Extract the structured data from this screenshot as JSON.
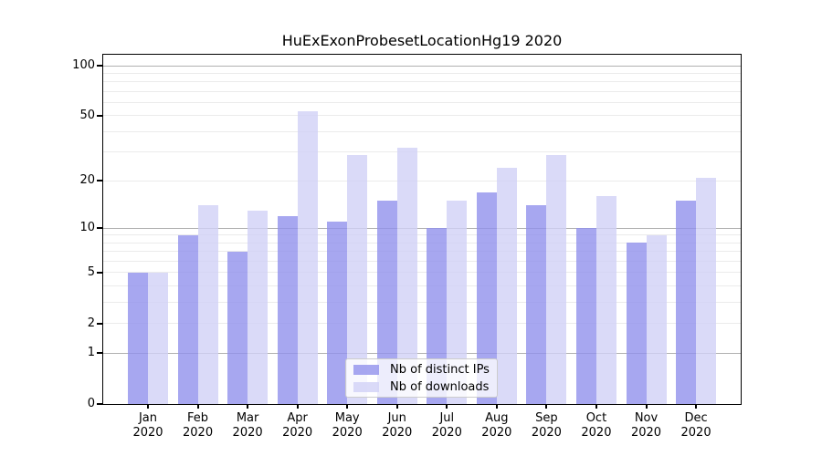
{
  "chart_data": {
    "type": "bar",
    "title": "HuExExonProbesetLocationHg19 2020",
    "categories": [
      "Jan",
      "Feb",
      "Mar",
      "Apr",
      "May",
      "Jun",
      "Jul",
      "Aug",
      "Sep",
      "Oct",
      "Nov",
      "Dec"
    ],
    "category_year_label": "2020",
    "series": [
      {
        "name": "Nb of distinct IPs",
        "color": "#9191ec",
        "alpha": 0.8,
        "values": [
          5,
          9,
          7,
          12,
          11,
          15,
          10,
          17,
          14,
          10,
          8,
          15
        ]
      },
      {
        "name": "Nb of downloads",
        "color": "#d1d1f6",
        "alpha": 0.8,
        "values": [
          5,
          14,
          13,
          53,
          29,
          32,
          15,
          24,
          29,
          16,
          9,
          21
        ]
      }
    ],
    "ylabel": "",
    "xlabel": "",
    "yscale": "log10(1+x)",
    "ylim": [
      0,
      100
    ],
    "yticks": [
      0,
      1,
      2,
      5,
      10,
      20,
      50,
      100
    ],
    "major_gridlines": [
      1,
      10,
      100
    ],
    "minor_gridlines": [
      2,
      3,
      4,
      5,
      6,
      7,
      8,
      9,
      20,
      30,
      40,
      50,
      60,
      70,
      80,
      90
    ],
    "grid_major_color": "#b0b0b0",
    "grid_minor_color": "#ebebeb",
    "legend_position": "inside bottom center",
    "legend_entries": [
      "Nb of distinct IPs",
      "Nb of downloads"
    ]
  }
}
